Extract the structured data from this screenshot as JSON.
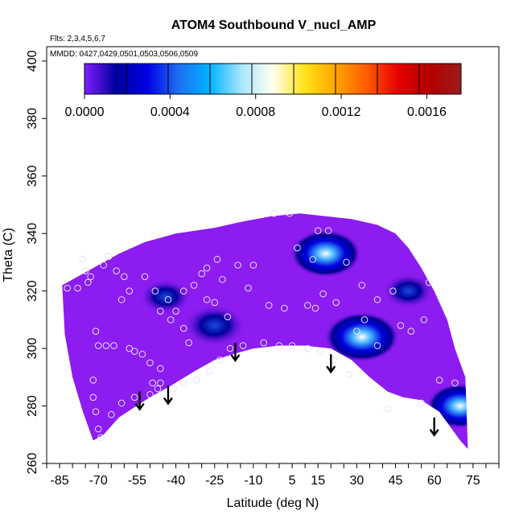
{
  "chart_data": {
    "type": "heatmap",
    "title": "ATOM4 Southbound V_nucl_AMP",
    "flights_label": "Flts: 2,3,4,5,6,7",
    "dates_label": "MMDD: 0427,0429,0501,0503,0506,0509",
    "xlabel": "Latitude (deg N)",
    "ylabel": "Theta (C)",
    "xlim": [
      -90,
      85
    ],
    "ylim": [
      260,
      405
    ],
    "x_ticks": [
      "-85",
      "-70",
      "-55",
      "-40",
      "-25",
      "-10",
      "5",
      "15",
      "30",
      "45",
      "60",
      "75"
    ],
    "y_ticks": [
      "260",
      "280",
      "300",
      "320",
      "340",
      "360",
      "380",
      "400"
    ],
    "colorbar": {
      "min": 0,
      "max": 0.00176,
      "tick_values": [
        0,
        0.0004,
        0.0008,
        0.0012,
        0.0016
      ],
      "tick_labels": [
        "0.0000",
        "0.0004",
        "0.0008",
        "0.0012",
        "0.0016"
      ],
      "colors": [
        "#7f1fff",
        "#00009a",
        "#0000e6",
        "#1e6ef0",
        "#00b4ff",
        "#a8e6ff",
        "#fffff0",
        "#ffe31a",
        "#ffa500",
        "#ff5a00",
        "#e60000",
        "#b40000",
        "#9b1c1c"
      ]
    },
    "background_color": "#8c1cf0",
    "domain_outline": [
      [
        -84,
        322
      ],
      [
        -72,
        328
      ],
      [
        -62,
        333
      ],
      [
        -52,
        337
      ],
      [
        -40,
        340
      ],
      [
        -25,
        342
      ],
      [
        -15,
        344
      ],
      [
        -3,
        346
      ],
      [
        8,
        347
      ],
      [
        18,
        346
      ],
      [
        28,
        345
      ],
      [
        38,
        343
      ],
      [
        45,
        340
      ],
      [
        50,
        335
      ],
      [
        55,
        328
      ],
      [
        60,
        320
      ],
      [
        65,
        310
      ],
      [
        68,
        300
      ],
      [
        72,
        290
      ],
      [
        73,
        265
      ],
      [
        70,
        268
      ],
      [
        62,
        278
      ],
      [
        55,
        282
      ],
      [
        48,
        283
      ],
      [
        42,
        285
      ],
      [
        35,
        290
      ],
      [
        28,
        296
      ],
      [
        20,
        300
      ],
      [
        10,
        301
      ],
      [
        0,
        301
      ],
      [
        -10,
        300
      ],
      [
        -18,
        298
      ],
      [
        -25,
        296
      ],
      [
        -33,
        292
      ],
      [
        -42,
        287
      ],
      [
        -50,
        283
      ],
      [
        -57,
        279
      ],
      [
        -62,
        276
      ],
      [
        -68,
        270
      ],
      [
        -72,
        268
      ],
      [
        -76,
        278
      ],
      [
        -80,
        290
      ],
      [
        -83,
        305
      ]
    ],
    "features": [
      {
        "lat": -44,
        "theta": 318,
        "value": 0.00025
      },
      {
        "lat": -25,
        "theta": 308,
        "value": 0.00055
      },
      {
        "lat": 18,
        "theta": 333,
        "value": 0.0008
      },
      {
        "lat": 32,
        "theta": 304,
        "value": 0.0009
      },
      {
        "lat": 50,
        "theta": 320,
        "value": 0.00025
      },
      {
        "lat": 70,
        "theta": 280,
        "value": 0.0007
      }
    ],
    "points": [
      [
        -82,
        321
      ],
      [
        -76,
        331
      ],
      [
        -75,
        327
      ],
      [
        -74,
        323
      ],
      [
        -73,
        325
      ],
      [
        -68,
        329
      ],
      [
        -66,
        332
      ],
      [
        -63,
        327
      ],
      [
        -60,
        325
      ],
      [
        -58,
        320
      ],
      [
        -52,
        325
      ],
      [
        -48,
        320
      ],
      [
        -46,
        313
      ],
      [
        -43,
        317
      ],
      [
        -42,
        310
      ],
      [
        -40,
        313
      ],
      [
        -37,
        307
      ],
      [
        -35,
        302
      ],
      [
        -33,
        322
      ],
      [
        -30,
        326
      ],
      [
        -28,
        328
      ],
      [
        -24,
        331
      ],
      [
        -22,
        324
      ],
      [
        -20,
        311
      ],
      [
        -16,
        329
      ],
      [
        -12,
        321
      ],
      [
        -71,
        306
      ],
      [
        -70,
        301
      ],
      [
        -67,
        301
      ],
      [
        -64,
        301
      ],
      [
        -58,
        300
      ],
      [
        -56,
        299
      ],
      [
        -53,
        298
      ],
      [
        -50,
        295
      ],
      [
        -46,
        293
      ],
      [
        -41,
        286
      ],
      [
        -37,
        288
      ],
      [
        -32,
        289
      ],
      [
        -27,
        292
      ],
      [
        -23,
        296
      ],
      [
        -19,
        300
      ],
      [
        -14,
        301
      ],
      [
        -6,
        302
      ],
      [
        0,
        301
      ],
      [
        5,
        301
      ],
      [
        11,
        300
      ],
      [
        16,
        299
      ],
      [
        21,
        296
      ],
      [
        27,
        291
      ],
      [
        -72,
        289
      ],
      [
        -72,
        283
      ],
      [
        -71,
        278
      ],
      [
        -70,
        272
      ],
      [
        -69,
        269
      ],
      [
        -65,
        277
      ],
      [
        -61,
        281
      ],
      [
        -56,
        283
      ],
      [
        -50,
        284
      ],
      [
        -47,
        286
      ],
      [
        -4,
        315
      ],
      [
        2,
        314
      ],
      [
        7,
        335
      ],
      [
        13,
        331
      ],
      [
        15,
        341
      ],
      [
        19,
        341
      ],
      [
        26,
        330
      ],
      [
        32,
        322
      ],
      [
        38,
        317
      ],
      [
        44,
        320
      ],
      [
        47,
        308
      ],
      [
        51,
        306
      ],
      [
        56,
        310
      ],
      [
        58,
        323
      ],
      [
        -10,
        329
      ],
      [
        -2,
        347
      ],
      [
        4,
        347
      ],
      [
        11,
        315
      ],
      [
        14,
        314
      ],
      [
        17,
        319
      ],
      [
        22,
        316
      ],
      [
        30,
        306
      ],
      [
        33,
        310
      ],
      [
        38,
        301
      ],
      [
        42,
        279
      ],
      [
        55,
        281
      ],
      [
        62,
        289
      ],
      [
        68,
        288
      ],
      [
        -46,
        288
      ],
      [
        -49,
        288
      ],
      [
        -78,
        321
      ],
      [
        -61,
        317
      ],
      [
        -28,
        317
      ],
      [
        -25,
        316
      ],
      [
        -37,
        320
      ]
    ],
    "arrows": [
      {
        "lat": -54,
        "theta": 285
      },
      {
        "lat": -43,
        "theta": 287
      },
      {
        "lat": -17,
        "theta": 302
      },
      {
        "lat": 20,
        "theta": 298
      },
      {
        "lat": 60,
        "theta": 276
      }
    ]
  }
}
